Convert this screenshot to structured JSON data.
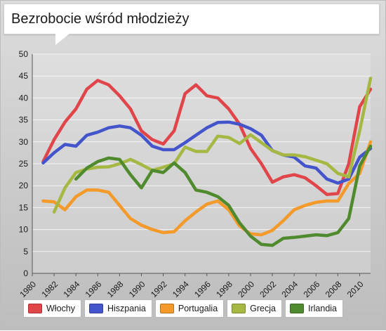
{
  "title": "Bezrobocie wśród młodzieży",
  "chart_data": {
    "type": "line",
    "title": "Bezrobocie wśród młodzieży",
    "xlabel": "",
    "ylabel": "",
    "xlim": [
      1980,
      2011
    ],
    "ylim": [
      0,
      50
    ],
    "y_ticks": [
      0,
      5,
      10,
      15,
      20,
      25,
      30,
      35,
      40,
      45,
      50
    ],
    "x_ticks": [
      1980,
      1982,
      1984,
      1986,
      1988,
      1990,
      1992,
      1994,
      1996,
      1998,
      2000,
      2002,
      2004,
      2006,
      2008,
      2010
    ],
    "grid": "horizontal",
    "legend": "bottom",
    "series": [
      {
        "name": "Włochy",
        "color": "#e0454a",
        "x": [
          1981,
          1982,
          1983,
          1984,
          1985,
          1986,
          1987,
          1988,
          1989,
          1990,
          1991,
          1992,
          1993,
          1994,
          1995,
          1996,
          1997,
          1998,
          1999,
          2000,
          2001,
          2002,
          2003,
          2004,
          2005,
          2006,
          2007,
          2008,
          2009,
          2010,
          2011
        ],
        "values": [
          25.5,
          30.5,
          34.5,
          37.5,
          42,
          44,
          43,
          40.5,
          37.5,
          32.5,
          30.5,
          29.5,
          32.5,
          41,
          43,
          40.5,
          40,
          37.5,
          34,
          28.5,
          25,
          20.8,
          22,
          22.5,
          21.8,
          20,
          18,
          18.2,
          25,
          38,
          42
        ]
      },
      {
        "name": "Hiszpania",
        "color": "#4455cc",
        "x": [
          1981,
          1982,
          1983,
          1984,
          1985,
          1986,
          1987,
          1988,
          1989,
          1990,
          1991,
          1992,
          1993,
          1994,
          1995,
          1996,
          1997,
          1998,
          1999,
          2000,
          2001,
          2002,
          2003,
          2004,
          2005,
          2006,
          2007,
          2008,
          2009,
          2010,
          2011
        ],
        "values": [
          25.2,
          27.5,
          29.4,
          29,
          31.5,
          32.2,
          33.2,
          33.6,
          33.2,
          31.5,
          29,
          28.2,
          28.2,
          29.8,
          31.5,
          33.2,
          34.4,
          34.5,
          34,
          33,
          31.5,
          28,
          27,
          26.5,
          24.5,
          24,
          21.5,
          20.6,
          21.5,
          26.5,
          28.5
        ]
      },
      {
        "name": "Portugalia",
        "color": "#f39a2b",
        "x": [
          1981,
          1982,
          1983,
          1984,
          1985,
          1986,
          1987,
          1988,
          1989,
          1990,
          1991,
          1992,
          1993,
          1994,
          1995,
          1996,
          1997,
          1998,
          1999,
          2000,
          2001,
          2002,
          2003,
          2004,
          2005,
          2006,
          2007,
          2008,
          2009,
          2010,
          2011
        ],
        "values": [
          16.5,
          16.3,
          14.5,
          17.5,
          19,
          19,
          18.5,
          15.5,
          12.5,
          11,
          10,
          9.3,
          9.5,
          12,
          14,
          15.8,
          16.5,
          14.5,
          10.8,
          9,
          8.8,
          9.8,
          12,
          14.5,
          15.5,
          16.2,
          16.5,
          16.5,
          20.5,
          22.8,
          30
        ]
      },
      {
        "name": "Grecja",
        "color": "#a6b843",
        "x": [
          1982,
          1983,
          1984,
          1985,
          1986,
          1987,
          1988,
          1989,
          1990,
          1991,
          1992,
          1993,
          1994,
          1995,
          1996,
          1997,
          1998,
          1999,
          2000,
          2001,
          2002,
          2003,
          2004,
          2005,
          2006,
          2007,
          2008,
          2009,
          2010,
          2011
        ],
        "values": [
          14,
          19.5,
          23,
          23.8,
          24.2,
          24.3,
          25,
          26,
          24.8,
          23.5,
          24.2,
          25,
          28.8,
          27.8,
          27.8,
          31.3,
          31,
          29.6,
          31.6,
          29.8,
          28,
          27,
          27,
          26.6,
          25.8,
          25,
          22.8,
          22,
          32.5,
          44.5
        ]
      },
      {
        "name": "Irlandia",
        "color": "#4f8a2e",
        "x": [
          1984,
          1985,
          1986,
          1987,
          1988,
          1989,
          1990,
          1991,
          1992,
          1993,
          1994,
          1995,
          1996,
          1997,
          1998,
          1999,
          2000,
          2001,
          2002,
          2003,
          2004,
          2005,
          2006,
          2007,
          2008,
          2009,
          2010,
          2011
        ],
        "values": [
          21.5,
          24,
          25.5,
          26.3,
          26,
          22.5,
          19.5,
          23.5,
          23,
          25.2,
          23,
          19,
          18.5,
          17.5,
          15.5,
          11.5,
          8.5,
          6.6,
          6.4,
          8,
          8.2,
          8.5,
          8.8,
          8.6,
          9.3,
          12.5,
          24.5,
          29
        ]
      }
    ]
  }
}
